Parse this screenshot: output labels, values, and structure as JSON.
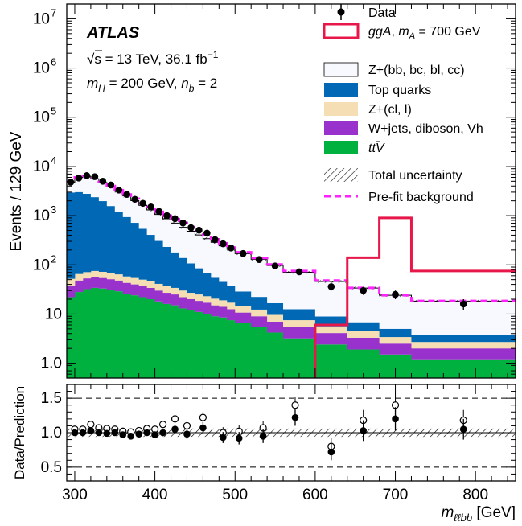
{
  "chart_data": [
    {
      "type": "stacked-histogram",
      "experiment": "ATLAS",
      "energy_label": "s = 13 TeV,  36.1 fb",
      "energy_sqrt": "√",
      "lumi_exp": "−1",
      "selection_label": "m_H = 200 GeV, n_b = 2",
      "ylabel": "Events / 129 GeV",
      "yscale": "log",
      "ylim": [
        0.5,
        20000000
      ],
      "xlim": [
        290,
        850
      ],
      "yticks": [
        {
          "v": 1,
          "label": "1.0"
        },
        {
          "v": 10,
          "label": "10"
        },
        {
          "v": 100,
          "label": "10",
          "exp": "2"
        },
        {
          "v": 1000,
          "label": "10",
          "exp": "3"
        },
        {
          "v": 10000,
          "label": "10",
          "exp": "4"
        },
        {
          "v": 100000,
          "label": "10",
          "exp": "5"
        },
        {
          "v": 1000000,
          "label": "10",
          "exp": "6"
        },
        {
          "v": 10000000,
          "label": "10",
          "exp": "7"
        }
      ],
      "bin_edges": [
        290,
        300,
        310,
        320,
        330,
        340,
        350,
        360,
        370,
        380,
        390,
        400,
        410,
        420,
        430,
        440,
        450,
        460,
        470,
        480,
        490,
        500,
        520,
        540,
        560,
        600,
        640,
        680,
        720,
        850
      ],
      "series": [
        {
          "name": "tt̄V",
          "label": "t",
          "label_suffix": "V",
          "color": "#00b140",
          "values": [
            22,
            28,
            32,
            34,
            33,
            31,
            29,
            26,
            24,
            22,
            20,
            18,
            16,
            15,
            13,
            12,
            11,
            10,
            9,
            8.5,
            7.5,
            6.5,
            5.5,
            4.2,
            3.2,
            2.4,
            1.9,
            1.5,
            1.2
          ]
        },
        {
          "name": "W+jets, diboson, Vh",
          "color": "#9932cc",
          "values": [
            16,
            20,
            21,
            22,
            21,
            20,
            19,
            17,
            16,
            15,
            14,
            12,
            11,
            10,
            9,
            8,
            7.5,
            7,
            6,
            5.5,
            5,
            4.2,
            3.5,
            2.8,
            2.3,
            1.7,
            1.4,
            1.0,
            0.8
          ]
        },
        {
          "name": "Z+(cl, l)",
          "color": "#f5deb3",
          "values": [
            14,
            17,
            18,
            19,
            18,
            17,
            16,
            15,
            14,
            13,
            12,
            11,
            10,
            9,
            8,
            7,
            6.5,
            6,
            5.5,
            5,
            4.5,
            4,
            3.3,
            2.6,
            2.0,
            1.5,
            1.2,
            0.9,
            0.7
          ]
        },
        {
          "name": "Top quarks",
          "color": "#0068b5",
          "values": [
            2900,
            2950,
            2700,
            2300,
            1900,
            1500,
            1150,
            880,
            660,
            490,
            360,
            265,
            195,
            145,
            108,
            80,
            60,
            45,
            34,
            26,
            20,
            14,
            10,
            7,
            5,
            3.3,
            2.3,
            1.6,
            1.1
          ]
        },
        {
          "name": "Z+(bb, bc, bl, cc)",
          "color": "#f8f8ff",
          "values": [
            1800,
            2950,
            3400,
            3250,
            2750,
            2250,
            1900,
            1570,
            1300,
            1080,
            900,
            750,
            630,
            525,
            440,
            375,
            320,
            272,
            233,
            198,
            168,
            140,
            107,
            80,
            58,
            37,
            27,
            19,
            14.5
          ]
        }
      ],
      "total_uncertainty": {
        "name": "Total uncertainty",
        "rel": 0.06
      },
      "prefit": {
        "name": "Pre-fit background",
        "color": "#ff22ff",
        "values": [
          4900,
          6000,
          6300,
          5800,
          4800,
          4000,
          3300,
          2700,
          2200,
          1800,
          1500,
          1200,
          1000,
          850,
          710,
          590,
          490,
          400,
          330,
          275,
          225,
          180,
          138,
          102,
          75,
          48,
          34,
          24,
          18.5
        ]
      },
      "signal": {
        "name": "ggA, m_A = 700 GeV",
        "color": "#e8174a",
        "values": [
          0,
          0,
          0,
          0,
          0,
          0,
          0,
          0,
          0,
          0,
          0,
          0,
          0,
          0,
          0,
          0,
          0,
          0,
          0,
          0,
          0,
          0,
          0,
          0,
          0,
          6,
          140,
          900,
          75
        ]
      },
      "data": {
        "name": "Data",
        "x": [
          295,
          305,
          315,
          325,
          335,
          345,
          355,
          365,
          375,
          385,
          395,
          405,
          415,
          425,
          435,
          445,
          455,
          465,
          475,
          485,
          495,
          510,
          530,
          550,
          580,
          620,
          660,
          700,
          785
        ],
        "y": [
          4800,
          5800,
          6500,
          6200,
          5000,
          4200,
          3300,
          2700,
          2150,
          1780,
          1500,
          1220,
          1000,
          870,
          710,
          570,
          505,
          440,
          325,
          268,
          220,
          170,
          128,
          95,
          72,
          36,
          30,
          25,
          16
        ]
      }
    },
    {
      "type": "scatter",
      "ylabel": "Data/Prediction",
      "xlabel": "m",
      "xlabel_sub": "ℓℓbb",
      "xlabel_unit": " [GeV]",
      "xlim": [
        290,
        850
      ],
      "ylim": [
        0.3,
        1.7
      ],
      "xticks": [
        300,
        400,
        500,
        600,
        700,
        800
      ],
      "yticks": [
        {
          "v": 0.5,
          "label": "0.5"
        },
        {
          "v": 1.0,
          "label": "1.0"
        },
        {
          "v": 1.5,
          "label": "1.5"
        }
      ],
      "reference_lines": [
        0.5,
        1.0,
        1.5
      ],
      "postfit": {
        "x": [
          300,
          310,
          320,
          330,
          340,
          350,
          360,
          370,
          380,
          390,
          400,
          410,
          425,
          440,
          460,
          485,
          505,
          535,
          575,
          620,
          660,
          700,
          785
        ],
        "y": [
          1.0,
          1.0,
          1.03,
          1.0,
          0.99,
          1.0,
          0.97,
          0.95,
          0.98,
          1.0,
          0.97,
          1.0,
          1.05,
          0.98,
          1.07,
          0.93,
          0.92,
          0.95,
          1.22,
          0.72,
          1.03,
          1.2,
          1.05
        ],
        "err": [
          0.03,
          0.03,
          0.03,
          0.03,
          0.03,
          0.03,
          0.03,
          0.03,
          0.04,
          0.04,
          0.04,
          0.05,
          0.06,
          0.07,
          0.08,
          0.08,
          0.09,
          0.1,
          0.12,
          0.12,
          0.15,
          0.17,
          0.15
        ]
      },
      "prefit": {
        "x": [
          300,
          310,
          320,
          330,
          340,
          350,
          360,
          370,
          380,
          390,
          400,
          410,
          425,
          440,
          460,
          485,
          505,
          535,
          575,
          620,
          660,
          700,
          785
        ],
        "y": [
          1.05,
          1.05,
          1.12,
          1.07,
          1.06,
          1.05,
          1.02,
          1.01,
          1.03,
          1.06,
          1.05,
          1.12,
          1.2,
          1.1,
          1.22,
          1.0,
          1.02,
          1.07,
          1.4,
          0.8,
          1.18,
          1.4,
          1.18
        ]
      }
    }
  ]
}
